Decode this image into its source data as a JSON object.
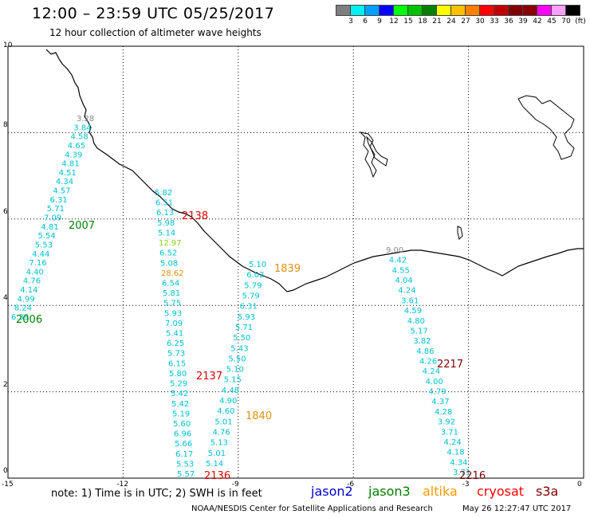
{
  "header": {
    "title": "12:00 – 23:59 UTC 05/25/2017",
    "subtitle": "12 hour collection of altimeter wave heights"
  },
  "colorbar": {
    "colors": [
      "#7f7f7f",
      "#00f0f0",
      "#00a0ff",
      "#0000ff",
      "#00ff00",
      "#00c000",
      "#008000",
      "#ffff00",
      "#ffc000",
      "#ff8000",
      "#ff0000",
      "#c00000",
      "#800000",
      "#8b0000",
      "#ff00ff",
      "#ffa0ff",
      "#000000"
    ],
    "labels": [
      "3",
      "6",
      "9",
      "12",
      "15",
      "18",
      "21",
      "24",
      "27",
      "30",
      "33",
      "36",
      "39",
      "42",
      "45",
      "70",
      "(ft)"
    ]
  },
  "axes": {
    "x_ticks": [
      "-15",
      "-12",
      "-9",
      "-6",
      "-3",
      "0"
    ],
    "y_ticks": [
      "10",
      "8",
      "6",
      "4",
      "2",
      "0"
    ]
  },
  "tracks": [
    {
      "name": "track-a",
      "values": [
        "3.28",
        "3.84",
        "4.58",
        "4.65",
        "4.39",
        "4.81",
        "4.51",
        "4.34",
        "4.57",
        "6.31",
        "5.71",
        "7.09",
        "4.81",
        "5.54",
        "5.53",
        "4.44",
        "7.16",
        "4.40",
        "4.76",
        "4.14",
        "4.99",
        "8.24",
        "6.39"
      ],
      "colors": [
        "#888888",
        "#00c0d0",
        "#00c0d0",
        "#00c0d0",
        "#00c0d0",
        "#00c0d0",
        "#00c0d0",
        "#00c0d0",
        "#00c0d0",
        "#00c0d0",
        "#00c0d0",
        "#00c0d0",
        "#00c0d0",
        "#00c0d0",
        "#00c0d0",
        "#00c0d0",
        "#00c0d0",
        "#00c0d0",
        "#00c0d0",
        "#00c0d0",
        "#00c0d0",
        "#00c0d0",
        "#00c0d0"
      ]
    },
    {
      "name": "track-b",
      "values": [
        "5.82",
        "6.51",
        "6.13",
        "5.98",
        "5.14",
        "12.97",
        "6.52",
        "5.08",
        "28.62",
        "6.54",
        "5.81",
        "5.75",
        "5.93",
        "7.09",
        "5.41",
        "6.25",
        "5.73",
        "6.15",
        "5.80",
        "5.29",
        "5.42",
        "5.42",
        "5.19",
        "5.60",
        "6.96",
        "5.66",
        "6.17",
        "5.53",
        "5.57"
      ],
      "colors": [
        "#00c0d0",
        "#00c0d0",
        "#00c0d0",
        "#00c0d0",
        "#00c0d0",
        "#88d020",
        "#00c0d0",
        "#00c0d0",
        "#e09010",
        "#00c0d0",
        "#00c0d0",
        "#00c0d0",
        "#00c0d0",
        "#00c0d0",
        "#00c0d0",
        "#00c0d0",
        "#00c0d0",
        "#00c0d0",
        "#00c0d0",
        "#00c0d0",
        "#00c0d0",
        "#00c0d0",
        "#00c0d0",
        "#00c0d0",
        "#00c0d0",
        "#00c0d0",
        "#00c0d0",
        "#00c0d0",
        "#00c0d0"
      ]
    },
    {
      "name": "track-c",
      "values": [
        "5.10",
        "6.02",
        "5.79",
        "5.79",
        "6.31",
        "5.93",
        "5.71",
        "5.50",
        "5.43",
        "5.50",
        "5.10",
        "5.15",
        "4.48",
        "4.90",
        "4.60",
        "5.01",
        "4.76",
        "5.13",
        "5.01",
        "5.14"
      ],
      "colors": [
        "#00c0d0",
        "#00c0d0",
        "#00c0d0",
        "#00c0d0",
        "#00c0d0",
        "#00c0d0",
        "#00c0d0",
        "#00c0d0",
        "#00c0d0",
        "#00c0d0",
        "#00c0d0",
        "#00c0d0",
        "#00c0d0",
        "#00c0d0",
        "#00c0d0",
        "#00c0d0",
        "#00c0d0",
        "#00c0d0",
        "#00c0d0",
        "#00c0d0"
      ]
    },
    {
      "name": "track-d",
      "values": [
        "9.00",
        "4.42",
        "4.55",
        "4.04",
        "4.24",
        "3.61",
        "4.59",
        "4.80",
        "5.17",
        "3.82",
        "4.86",
        "4.26",
        "4.24",
        "4.00",
        "4.79",
        "4.37",
        "4.28",
        "3.92",
        "3.71",
        "4.24",
        "4.18",
        "4.34",
        "3.71"
      ],
      "colors": [
        "#888888",
        "#00c0d0",
        "#00c0d0",
        "#00c0d0",
        "#00c0d0",
        "#00c0d0",
        "#00c0d0",
        "#00c0d0",
        "#00c0d0",
        "#00c0d0",
        "#00c0d0",
        "#00c0d0",
        "#00c0d0",
        "#00c0d0",
        "#00c0d0",
        "#00c0d0",
        "#00c0d0",
        "#00c0d0",
        "#00c0d0",
        "#00c0d0",
        "#00c0d0",
        "#00c0d0",
        "#00c0d0"
      ]
    }
  ],
  "time_labels": [
    {
      "text": "2007",
      "color": "#008000"
    },
    {
      "text": "2006",
      "color": "#008000"
    },
    {
      "text": "2138",
      "color": "#e00000"
    },
    {
      "text": "2137",
      "color": "#e00000"
    },
    {
      "text": "2136",
      "color": "#e00000"
    },
    {
      "text": "1839",
      "color": "#e09010"
    },
    {
      "text": "1840",
      "color": "#e09010"
    },
    {
      "text": "2217",
      "color": "#800000"
    },
    {
      "text": "2216",
      "color": "#800000"
    }
  ],
  "footer": {
    "note": "note: 1) Time is in UTC; 2) SWH is in feet",
    "legend": [
      {
        "text": "jason2",
        "color": "#0000cc"
      },
      {
        "text": "jason3",
        "color": "#008000"
      },
      {
        "text": "altika",
        "color": "#ff9900"
      },
      {
        "text": "cryosat",
        "color": "#ff0000"
      },
      {
        "text": "s3a",
        "color": "#800000"
      }
    ],
    "credit": "NOAA/NESDIS Center for Satellite Applications and Research",
    "timestamp": "May 26 12:27:47 UTC 2017"
  }
}
